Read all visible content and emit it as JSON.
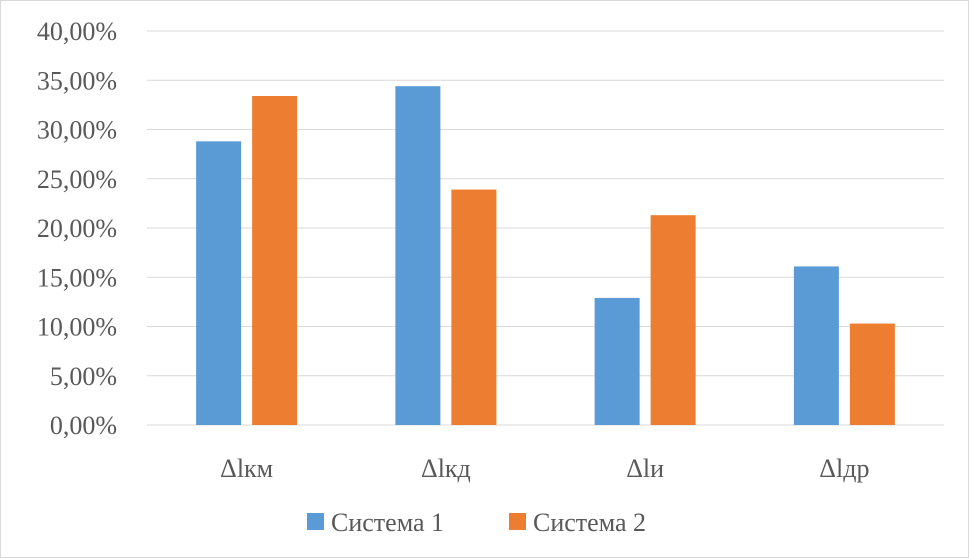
{
  "chart_data": {
    "type": "bar",
    "categories": [
      "Δlкм",
      "Δlкд",
      "Δlи",
      "Δlдр"
    ],
    "series": [
      {
        "name": "Система 1",
        "color": "#5b9bd5",
        "values": [
          28.8,
          34.4,
          12.9,
          16.1
        ]
      },
      {
        "name": "Система 2",
        "color": "#ed7d31",
        "values": [
          33.4,
          23.9,
          21.3,
          10.3
        ]
      }
    ],
    "yticks": [
      "0,00%",
      "5,00%",
      "10,00%",
      "15,00%",
      "20,00%",
      "25,00%",
      "30,00%",
      "35,00%",
      "40,00%"
    ],
    "ylim": [
      0,
      40
    ],
    "grid": true,
    "legend_position": "bottom",
    "title": "",
    "xlabel": "",
    "ylabel": ""
  }
}
